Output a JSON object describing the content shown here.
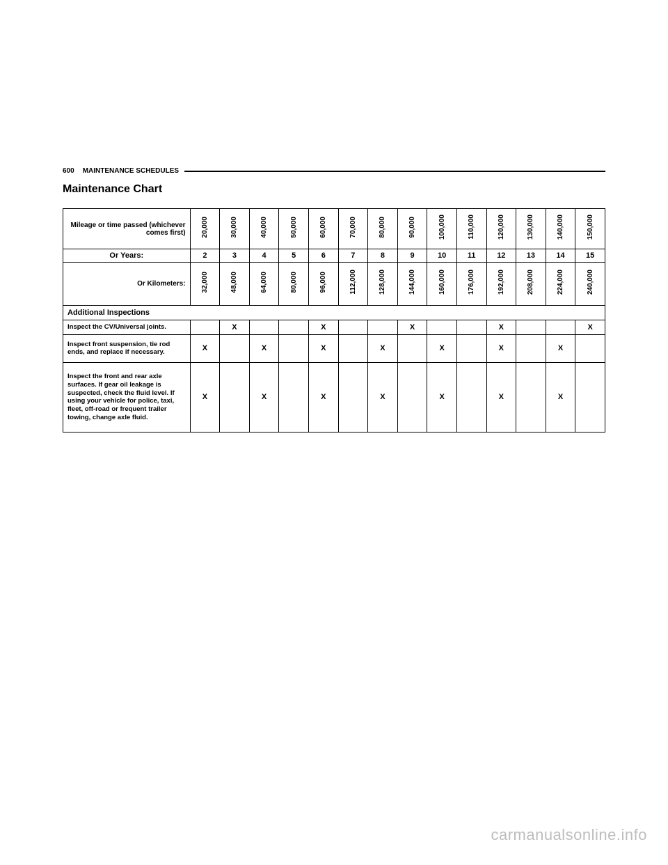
{
  "page_number": "600",
  "section_name": "MAINTENANCE SCHEDULES",
  "chart_title": "Maintenance Chart",
  "header_rows": {
    "mileage_label": "Mileage or time passed (whichever comes first)",
    "years_label": "Or Years:",
    "km_label": "Or Kilometers:",
    "mileage": [
      "20,000",
      "30,000",
      "40,000",
      "50,000",
      "60,000",
      "70,000",
      "80,000",
      "90,000",
      "100,000",
      "110,000",
      "120,000",
      "130,000",
      "140,000",
      "150,000"
    ],
    "years": [
      "2",
      "3",
      "4",
      "5",
      "6",
      "7",
      "8",
      "9",
      "10",
      "11",
      "12",
      "13",
      "14",
      "15"
    ],
    "km": [
      "32,000",
      "48,000",
      "64,000",
      "80,000",
      "96,000",
      "112,000",
      "128,000",
      "144,000",
      "160,000",
      "176,000",
      "192,000",
      "208,000",
      "224,000",
      "240,000"
    ]
  },
  "section_header": "Additional Inspections",
  "rows": [
    {
      "label": "Inspect the CV/Universal joints.",
      "marks": [
        "",
        "X",
        "",
        "",
        "X",
        "",
        "",
        "X",
        "",
        "",
        "X",
        "",
        "",
        "X"
      ]
    },
    {
      "label": "Inspect front suspension, tie rod ends, and replace if necessary.",
      "marks": [
        "X",
        "",
        "X",
        "",
        "X",
        "",
        "X",
        "",
        "X",
        "",
        "X",
        "",
        "X",
        ""
      ]
    },
    {
      "label": "Inspect the front and rear axle surfaces. If gear oil leakage is suspected, check the fluid level. If using your vehicle for police, taxi, fleet, off-road or frequent trailer towing, change axle fluid.",
      "marks": [
        "X",
        "",
        "X",
        "",
        "X",
        "",
        "X",
        "",
        "X",
        "",
        "X",
        "",
        "X",
        ""
      ]
    }
  ],
  "watermark": "carmanualsonline.info"
}
